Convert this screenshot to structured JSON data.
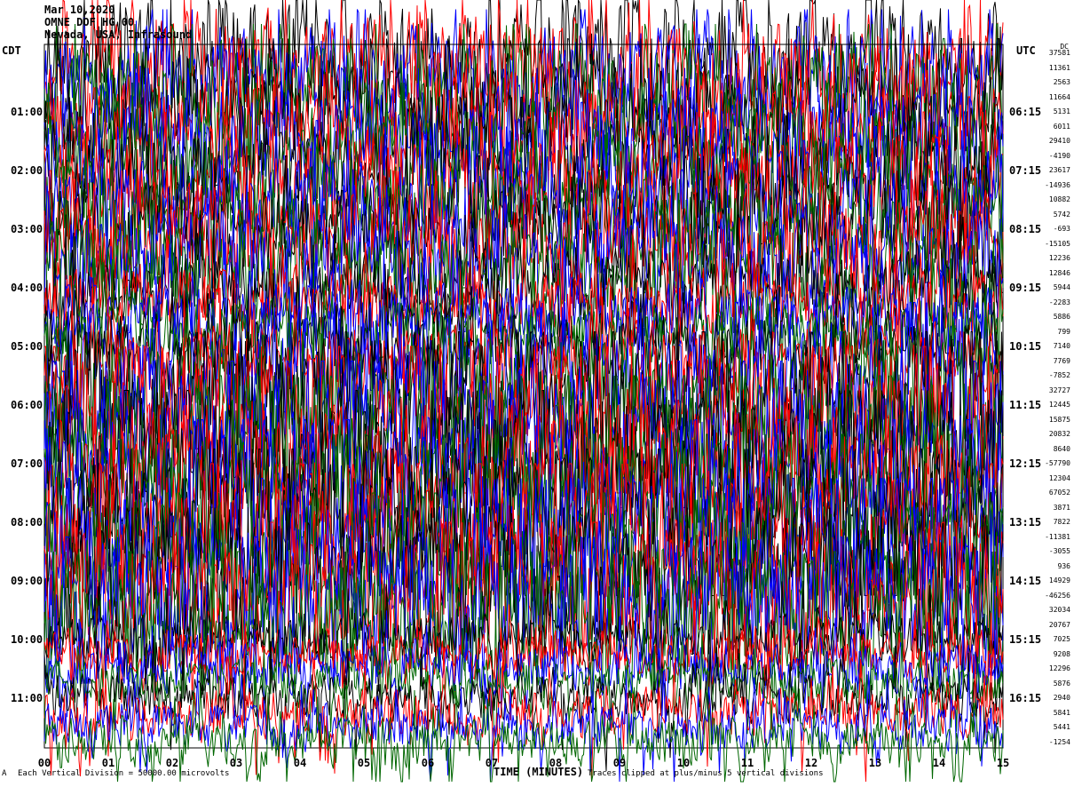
{
  "header": {
    "date": "Mar 10,2020",
    "station": "OMNE DOF HG 00",
    "location": "Nevada, USA, Infrasound"
  },
  "chart_data": {
    "type": "line",
    "subtype": "helicorder",
    "left_axis_label": "CDT",
    "right_axis_label": "UTC",
    "offset_header": "DC",
    "left_time_labels": [
      "01:00",
      "02:00",
      "03:00",
      "04:00",
      "05:00",
      "06:00",
      "07:00",
      "08:00",
      "09:00",
      "10:00",
      "11:00"
    ],
    "right_time_labels": [
      "06:15",
      "07:15",
      "08:15",
      "09:15",
      "10:15",
      "11:15",
      "12:15",
      "13:15",
      "14:15",
      "15:15",
      "16:15"
    ],
    "trace_offsets": [
      37581,
      11361,
      2563,
      11664,
      5131,
      6011,
      29410,
      -4190,
      23617,
      -14936,
      10882,
      5742,
      -693,
      -15105,
      12236,
      12846,
      5944,
      -2283,
      5886,
      799,
      7140,
      7769,
      -7852,
      32727,
      12445,
      15875,
      20832,
      8640,
      -57790,
      12304,
      67052,
      3871,
      7822,
      -11381,
      -3055,
      936,
      14929,
      -46256,
      32034,
      20767,
      7025,
      9208,
      12296,
      5876,
      2940,
      5841,
      5441,
      -1254
    ],
    "x_ticks": [
      "00",
      "01",
      "02",
      "03",
      "04",
      "05",
      "06",
      "07",
      "08",
      "09",
      "10",
      "11",
      "12",
      "13",
      "14",
      "15"
    ],
    "xlabel": "TIME (MINUTES)",
    "xlim": [
      0,
      15
    ],
    "trace_colors": [
      "#000000",
      "#ff0000",
      "#0000ff",
      "#006600"
    ],
    "clip_divisions": 5
  },
  "footer": {
    "marker": "A",
    "scale": "Each Vertical Division = 50000.00 microvolts",
    "clip_note": "Traces clipped at plus/minus 5 vertical divisions"
  }
}
